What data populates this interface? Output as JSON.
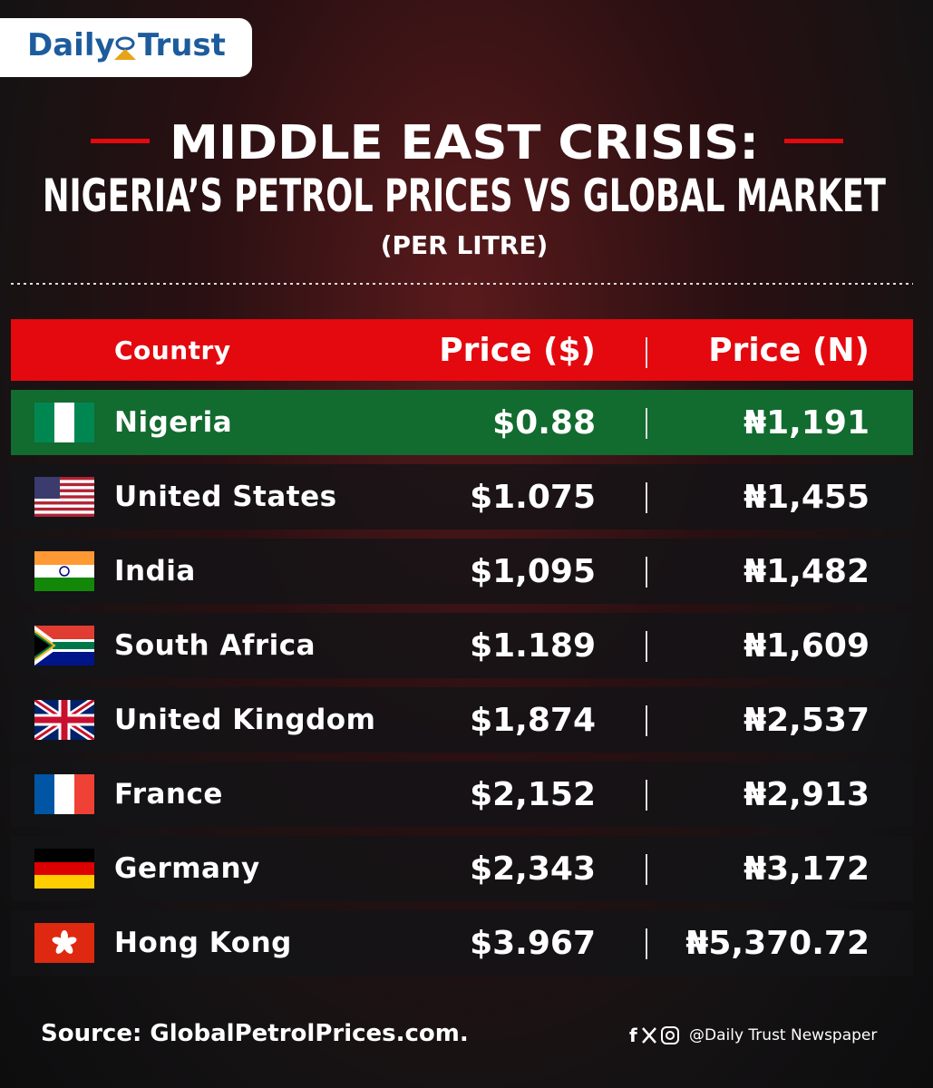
{
  "header": {
    "logo": {
      "left": "Daily",
      "right": "Trust"
    },
    "title_line1": "MIDDLE EAST CRISIS:",
    "title_line2": "NIGERIA’S PETROL PRICES VS GLOBAL MARKET",
    "subtitle": "(PER LITRE)"
  },
  "table": {
    "columns": [
      "Country",
      "Price ($)",
      "Price (N)"
    ],
    "rows": [
      [
        "Nigeria",
        "$0.88",
        "₦1,191"
      ],
      [
        "United States",
        "$1.075",
        "₦1,455"
      ],
      [
        "India",
        "$1,095",
        "₦1,482"
      ],
      [
        "South Africa",
        "$1.189",
        "₦1,609"
      ],
      [
        "United Kingdom",
        "$1,874",
        "₦2,537"
      ],
      [
        "France",
        "$2,152",
        "₦2,913"
      ],
      [
        "Germany",
        "$2,343",
        "₦3,172"
      ],
      [
        "Hong Kong",
        "$3.967",
        "₦5,370.72"
      ]
    ]
  },
  "footer": {
    "source": "Source: GlobalPetrolPrices.com.",
    "handle": "@Daily Trust Newspaper"
  }
}
